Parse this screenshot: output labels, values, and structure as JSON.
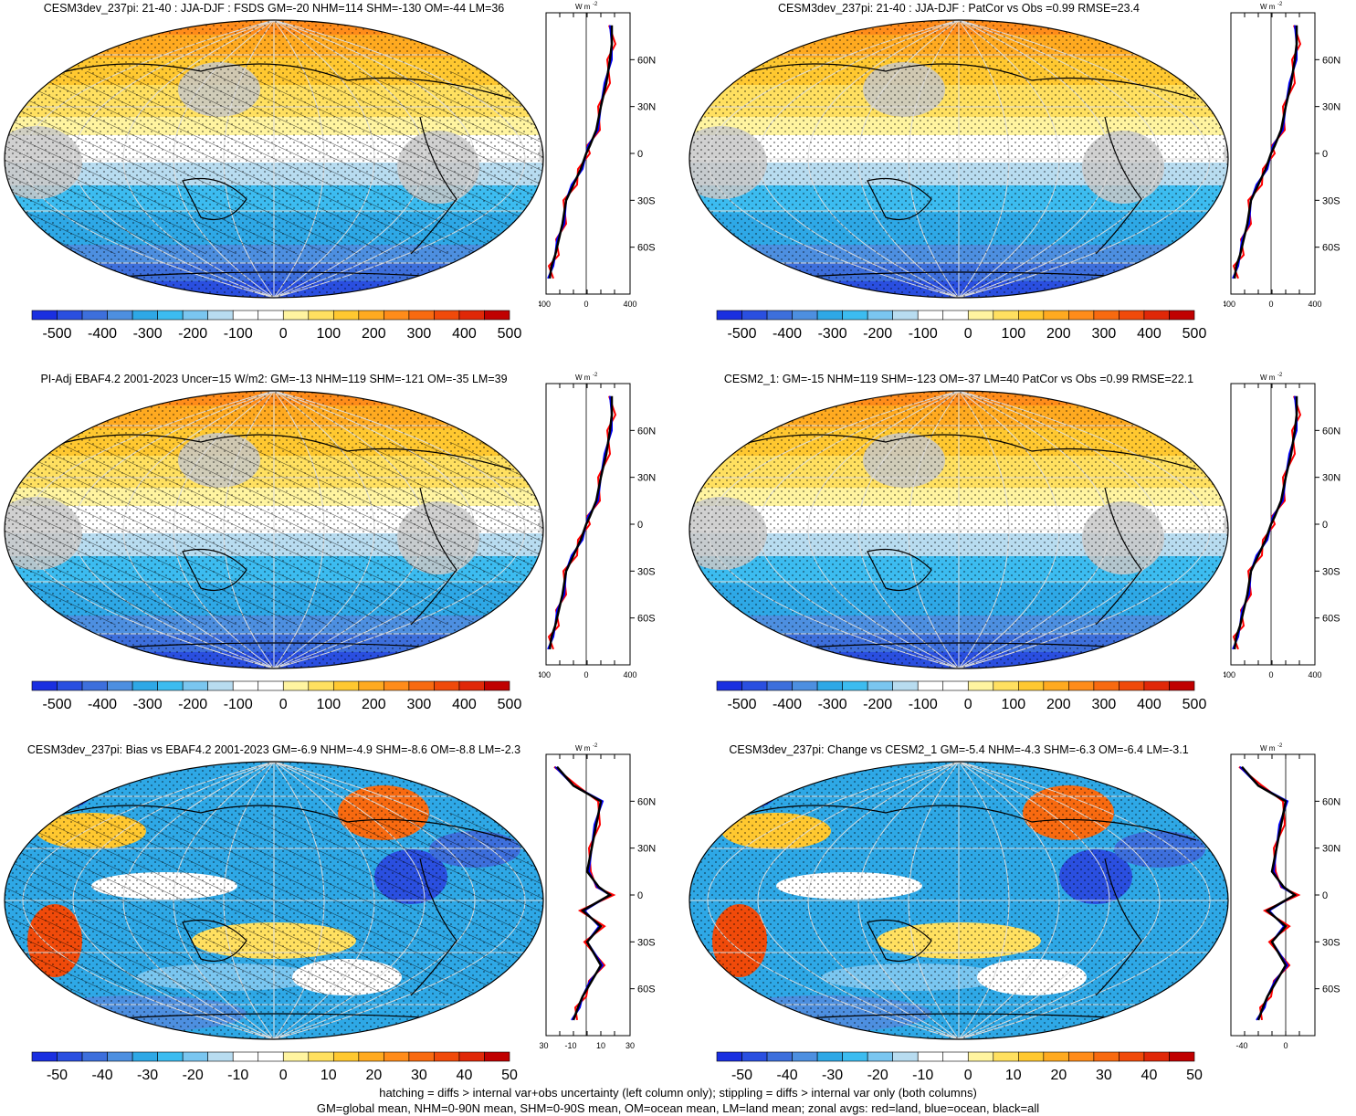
{
  "panels": [
    {
      "title": "CESM3dev_237pi: 21-40 : JJA-DJF : FSDS GM=-20 NHM=114 SHM=-130 OM=-44 LM=36",
      "scale": "abs",
      "hatch": true,
      "stipple": true
    },
    {
      "title": "CESM3dev_237pi: 21-40 : JJA-DJF : PatCor vs Obs =0.99 RMSE=23.4",
      "scale": "abs",
      "hatch": false,
      "stipple": true
    },
    {
      "title": "PI-Adj EBAF4.2 2001-2023 Uncer=15 W/m2: GM=-13 NHM=119 SHM=-121 OM=-35 LM=39",
      "scale": "abs",
      "hatch": true,
      "stipple": true
    },
    {
      "title": "CESM2_1: GM=-15 NHM=119 SHM=-123 OM=-37 LM=40 PatCor vs Obs =0.99 RMSE=22.1",
      "scale": "abs",
      "hatch": false,
      "stipple": true
    },
    {
      "title": "CESM3dev_237pi: Bias vs EBAF4.2 2001-2023 GM=-6.9 NHM=-4.9 SHM=-8.6 OM=-8.8 LM=-2.3",
      "scale": "diff",
      "hatch": true,
      "stipple": true
    },
    {
      "title": "CESM3dev_237pi: Change vs CESM2_1 GM=-5.4 NHM=-4.3 SHM=-6.3 OM=-6.4 LM=-3.1",
      "scale": "diff",
      "hatch": false,
      "stipple": true
    }
  ],
  "colorbars": {
    "abs": {
      "labels": [
        "-500",
        "-400",
        "-300",
        "-200",
        "-100",
        "0",
        "100",
        "200",
        "300",
        "400",
        "500"
      ]
    },
    "diff": {
      "labels": [
        "-50",
        "-40",
        "-30",
        "-20",
        "-10",
        "0",
        "10",
        "20",
        "30",
        "40",
        "50"
      ]
    }
  },
  "colors": [
    "#1a2fe0",
    "#2a4fe0",
    "#3d6fdc",
    "#4d8fe0",
    "#2ea8e6",
    "#3cbcf0",
    "#7ac6f0",
    "#b8dcf0",
    "#ffffff",
    "#ffffff",
    "#fff4a0",
    "#ffe060",
    "#ffc830",
    "#ffaa20",
    "#ff8c1a",
    "#f86a10",
    "#f04a0a",
    "#e02808",
    "#c00000"
  ],
  "zonal": {
    "unit_label": "W m",
    "unit_sup": "-2",
    "lat_labels": [
      "60N",
      "30N",
      "0",
      "30S",
      "60S"
    ],
    "lat_values": [
      60,
      30,
      0,
      -30,
      -60
    ],
    "abs_x_labels": [
      "-400",
      "0",
      "400"
    ],
    "diff_left_x_labels": [
      "-30",
      "-10",
      "10",
      "30"
    ],
    "diff_right_x_labels": [
      "-40",
      "0"
    ],
    "legend_colors": {
      "land": "#ff0000",
      "ocean": "#0000ff",
      "all": "#000000"
    }
  },
  "chart_data": [
    {
      "type": "heatmap",
      "panel": 1,
      "variable": "FSDS",
      "season": "JJA-DJF",
      "stats": {
        "GM": -20,
        "NHM": 114,
        "SHM": -130,
        "OM": -44,
        "LM": 36
      },
      "zonal_mean_profile": {
        "lat": [
          80,
          60,
          30,
          0,
          -30,
          -60,
          -80
        ],
        "all": [
          180,
          160,
          100,
          -50,
          -200,
          -280,
          -400
        ]
      }
    },
    {
      "type": "heatmap",
      "panel": 2,
      "patcor": 0.99,
      "rmse": 23.4
    },
    {
      "type": "heatmap",
      "panel": 3,
      "dataset": "PI-Adj EBAF4.2 2001-2023",
      "uncertainty": 15,
      "stats": {
        "GM": -13,
        "NHM": 119,
        "SHM": -121,
        "OM": -35,
        "LM": 39
      }
    },
    {
      "type": "heatmap",
      "panel": 4,
      "dataset": "CESM2_1",
      "stats": {
        "GM": -15,
        "NHM": 119,
        "SHM": -123,
        "OM": -37,
        "LM": 40
      },
      "patcor": 0.99,
      "rmse": 22.1
    },
    {
      "type": "heatmap",
      "panel": 5,
      "stats": {
        "GM": -6.9,
        "NHM": -4.9,
        "SHM": -8.6,
        "OM": -8.8,
        "LM": -2.3
      }
    },
    {
      "type": "heatmap",
      "panel": 6,
      "stats": {
        "GM": -5.4,
        "NHM": -4.3,
        "SHM": -6.3,
        "OM": -6.4,
        "LM": -3.1
      }
    }
  ],
  "footer": {
    "line1": "hatching = diffs > internal var+obs uncertainty (left column only); stippling = diffs > internal var only (both columns)",
    "line2": "GM=global mean, NHM=0-90N mean, SHM=0-90S mean, OM=ocean mean, LM=land mean; zonal avgs: red=land, blue=ocean, black=all"
  }
}
